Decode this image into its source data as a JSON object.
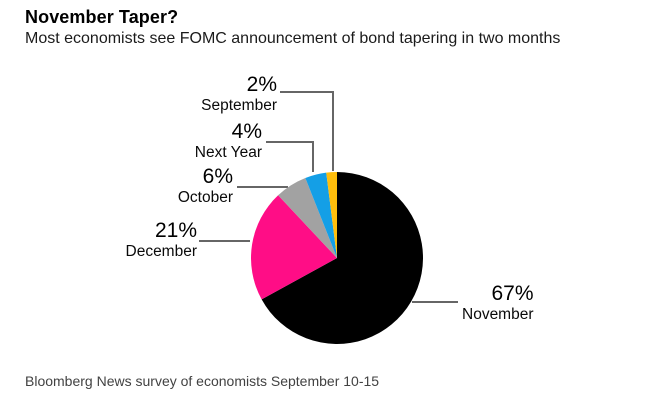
{
  "chart_data": {
    "type": "pie",
    "title": "November Taper?",
    "subtitle": "Most economists see FOMC announcement of bond tapering in two months",
    "source": "Bloomberg News survey of economists September 10-15",
    "start_angle_deg": 0,
    "direction": "clockwise",
    "legend_position": "callout-labels",
    "background_color": "#ffffff",
    "leader_line_color": "#666666",
    "slices": [
      {
        "id": "november",
        "label": "November",
        "pct_label": "67%",
        "value": 67,
        "color": "#000000"
      },
      {
        "id": "december",
        "label": "December",
        "pct_label": "21%",
        "value": 21,
        "color": "#ff0d86"
      },
      {
        "id": "october",
        "label": "October",
        "pct_label": "6%",
        "value": 6,
        "color": "#a2a2a2"
      },
      {
        "id": "next-year",
        "label": "Next Year",
        "pct_label": "4%",
        "value": 4,
        "color": "#149fe6"
      },
      {
        "id": "september",
        "label": "September",
        "pct_label": "2%",
        "value": 2,
        "color": "#ffbe0c"
      }
    ]
  }
}
